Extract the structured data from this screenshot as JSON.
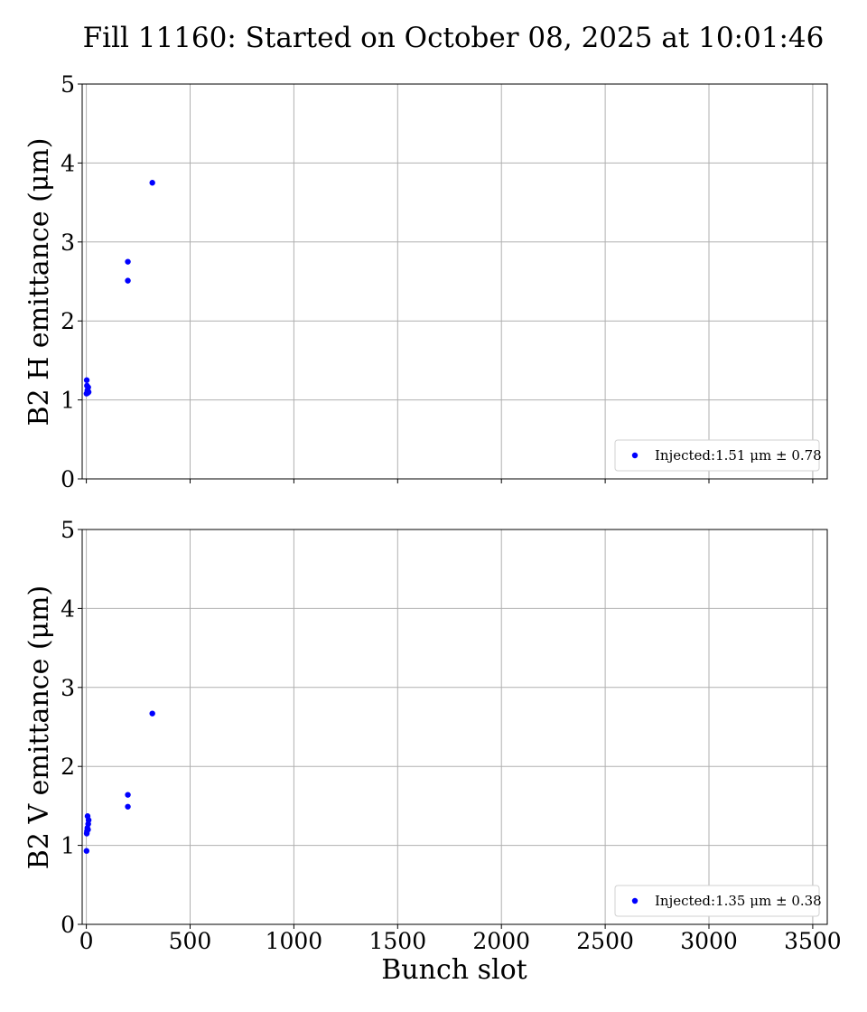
{
  "chart_data": [
    {
      "type": "scatter",
      "title": "Fill 11160: Started on October 08, 2025 at 10:01:46",
      "xlabel": "",
      "ylabel": "B2 H emittance (μm)",
      "xlim": [
        -20,
        3570
      ],
      "ylim": [
        0,
        5
      ],
      "x_ticks": [
        "0",
        "500",
        "1000",
        "1500",
        "2000",
        "2500",
        "3000",
        "3500"
      ],
      "y_ticks": [
        "0",
        "1",
        "2",
        "3",
        "4",
        "5"
      ],
      "grid": true,
      "legend_position": "bottom-right",
      "series": [
        {
          "name": "Injected:1.51 μm ± 0.78",
          "color": "#0000ff",
          "points": [
            [
              1,
              1.08
            ],
            [
              2,
              1.25
            ],
            [
              3,
              1.18
            ],
            [
              5,
              1.12
            ],
            [
              7,
              1.09
            ],
            [
              9,
              1.16
            ],
            [
              11,
              1.1
            ],
            [
              200,
              2.75
            ],
            [
              200,
              2.51
            ],
            [
              318,
              3.75
            ]
          ]
        }
      ]
    },
    {
      "type": "scatter",
      "title": "",
      "xlabel": "Bunch slot",
      "ylabel": "B2 V emittance (μm)",
      "xlim": [
        -20,
        3570
      ],
      "ylim": [
        0,
        5
      ],
      "x_ticks": [
        "0",
        "500",
        "1000",
        "1500",
        "2000",
        "2500",
        "3000",
        "3500"
      ],
      "y_ticks": [
        "0",
        "1",
        "2",
        "3",
        "4",
        "5"
      ],
      "grid": true,
      "legend_position": "bottom-right",
      "series": [
        {
          "name": "Injected:1.35 μm ± 0.38",
          "color": "#0000ff",
          "points": [
            [
              1,
              0.93
            ],
            [
              2,
              1.15
            ],
            [
              3,
              1.18
            ],
            [
              5,
              1.22
            ],
            [
              6,
              1.37
            ],
            [
              8,
              1.2
            ],
            [
              9,
              1.27
            ],
            [
              11,
              1.32
            ],
            [
              200,
              1.64
            ],
            [
              200,
              1.49
            ],
            [
              318,
              2.67
            ]
          ]
        }
      ]
    }
  ]
}
